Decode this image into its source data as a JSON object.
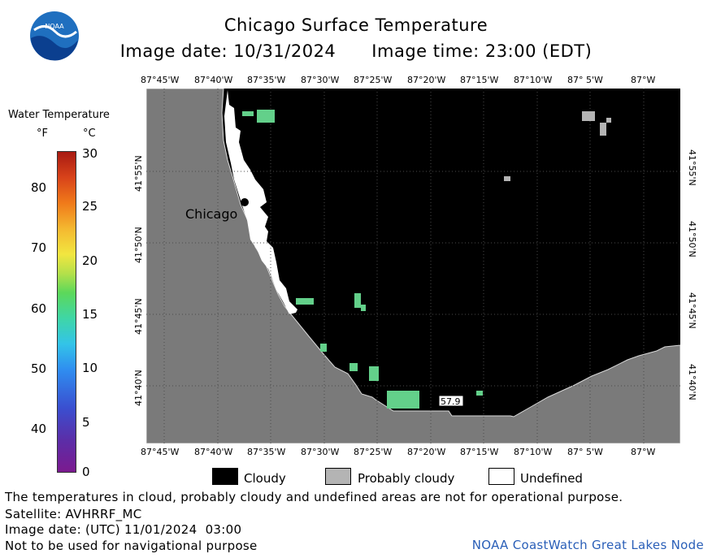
{
  "header": {
    "title": "Chicago Surface Temperature",
    "image_date": "Image date: 10/31/2024",
    "image_time": "Image time: 23:00 (EDT)",
    "logo_text": "NOAA"
  },
  "colorbar": {
    "title": "Water Temperature",
    "unit_f": "°F",
    "unit_c": "°C",
    "f_ticks": [
      "80",
      "70",
      "60",
      "50",
      "40"
    ],
    "c_ticks": [
      "30",
      "25",
      "20",
      "15",
      "10",
      "5",
      "0"
    ]
  },
  "map": {
    "lon_labels": [
      "87°45'W",
      "87°40'W",
      "87°35'W",
      "87°30'W",
      "87°25'W",
      "87°20'W",
      "87°15'W",
      "87°10'W",
      "87° 5'W",
      "87°W"
    ],
    "lat_labels": [
      "41°55'N",
      "41°50'N",
      "41°45'N",
      "41°40'N"
    ],
    "city_label": "Chicago",
    "buoy_value": "57.9"
  },
  "legend": {
    "cloudy": "Cloudy",
    "probably_cloudy": "Probably cloudy",
    "undefined": "Undefined",
    "colors": {
      "cloudy": "#000000",
      "probably_cloudy": "#b4b4b4",
      "undefined": "#ffffff"
    }
  },
  "footer": {
    "note": "The temperatures in cloud, probably cloudy and undefined areas are not for operational purpose.",
    "satellite": "Satellite: AVHRRF_MC",
    "utc_date": "Image date: (UTC) 11/01/2024  03:00",
    "nav_warning": "Not to be used for navigational purpose",
    "credit": "NOAA CoastWatch Great Lakes Node"
  },
  "colors": {
    "land": "#7a7a7a",
    "lake_cloud": "#000000",
    "water_green": "#63d08a",
    "credit_blue": "#2a5fb8"
  }
}
